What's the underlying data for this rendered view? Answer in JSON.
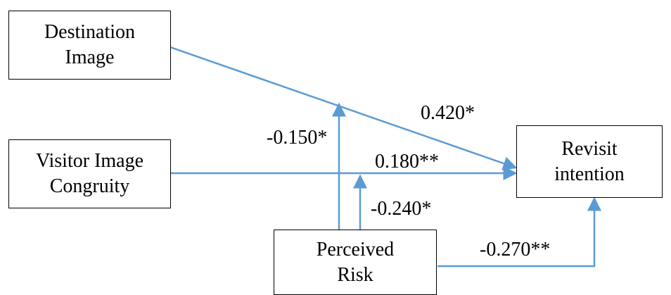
{
  "nodes": {
    "destination_image": "Destination\nImage",
    "visitor_image_congruity": "Visitor Image\nCongruity",
    "revisit_intention": "Revisit\nintention",
    "perceived_risk": "Perceived\nRisk"
  },
  "edges": {
    "destination_to_revisit": "0.420*",
    "visitor_to_revisit": "0.180**",
    "risk_moderates_destination": "-0.150*",
    "risk_moderates_visitor": "-0.240*",
    "risk_to_revisit": "-0.270**"
  },
  "colors": {
    "arrow": "#5B9BD5",
    "box_border": "#000000",
    "text": "#000000"
  }
}
